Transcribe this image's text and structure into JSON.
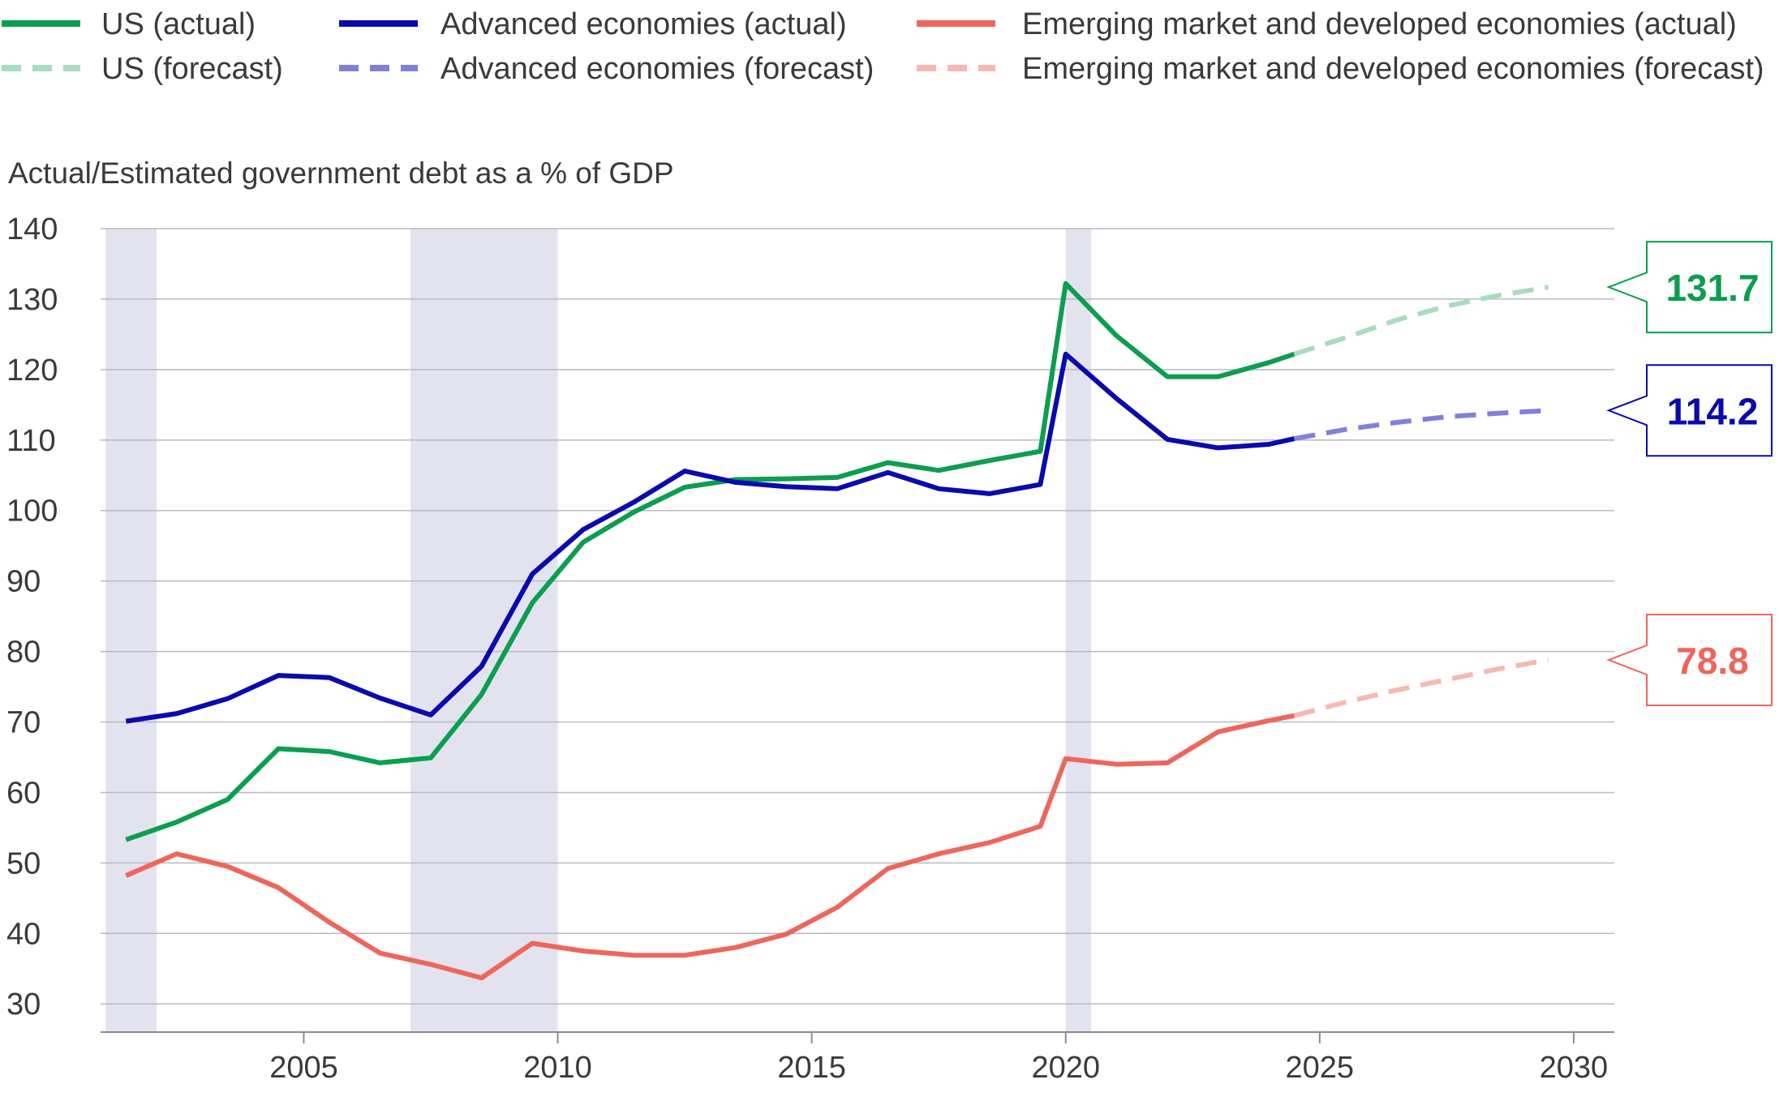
{
  "chart_data": {
    "type": "line",
    "title": "",
    "ylabel": "Actual/Estimated government debt as a % of GDP",
    "xlabel": "",
    "xlim": [
      2001,
      2030.8
    ],
    "ylim": [
      26,
      140
    ],
    "x_ticks": [
      2005,
      2010,
      2015,
      2020,
      2025,
      2030
    ],
    "y_ticks": [
      30,
      40,
      50,
      60,
      70,
      80,
      90,
      100,
      110,
      120,
      130,
      140
    ],
    "grid": "horizontal",
    "legend_position": "top",
    "recession_shading": [
      {
        "start": 2001.1,
        "end": 2002.1
      },
      {
        "start": 2007.1,
        "end": 2010.0
      },
      {
        "start": 2020.0,
        "end": 2020.5
      }
    ],
    "legend": [
      {
        "label": "US (actual)",
        "color": "#0b9e4f",
        "dashed": false
      },
      {
        "label": "Advanced economies (actual)",
        "color": "#0a0aad",
        "dashed": false
      },
      {
        "label": "Emerging market and developed economies (actual)",
        "color": "#ee665a",
        "dashed": false
      },
      {
        "label": "US (forecast)",
        "color": "#a8dcbf",
        "dashed": true
      },
      {
        "label": "Advanced economies (forecast)",
        "color": "#8080dc",
        "dashed": true
      },
      {
        "label": "Emerging market and developed economies (forecast)",
        "color": "#f8b8b2",
        "dashed": true
      }
    ],
    "series": [
      {
        "name": "US (actual)",
        "color": "#0b9e4f",
        "style": "solid",
        "x": [
          2001.5,
          2002.5,
          2003.5,
          2004.5,
          2005.5,
          2006.5,
          2007.5,
          2008.5,
          2009.5,
          2010.5,
          2011.5,
          2012.5,
          2013.5,
          2014.5,
          2015.5,
          2016.5,
          2017.5,
          2018.5,
          2019.5,
          2020.0,
          2021.0,
          2022.0,
          2023.0,
          2024.0,
          2024.5
        ],
        "y": [
          53.3,
          55.8,
          59,
          66.2,
          65.8,
          64.2,
          64.9,
          73.9,
          86.9,
          95.5,
          99.8,
          103.3,
          104.4,
          104.5,
          104.7,
          106.8,
          105.7,
          107.1,
          108.4,
          132.2,
          124.8,
          119.0,
          119.0,
          121.0,
          122.2
        ]
      },
      {
        "name": "US (forecast)",
        "color": "#a8dcbf",
        "style": "dashed",
        "x": [
          2024.5,
          2025.5,
          2026.5,
          2027.5,
          2028.5,
          2029.5
        ],
        "y": [
          122.2,
          124.5,
          127.0,
          129.0,
          130.5,
          131.7
        ]
      },
      {
        "name": "Advanced economies (actual)",
        "color": "#0a0aad",
        "style": "solid",
        "x": [
          2001.5,
          2002.5,
          2003.5,
          2004.5,
          2005.5,
          2006.5,
          2007.5,
          2008.5,
          2009.5,
          2010.5,
          2011.5,
          2012.5,
          2013.5,
          2014.5,
          2015.5,
          2016.5,
          2017.5,
          2018.5,
          2019.5,
          2020.0,
          2021.0,
          2022.0,
          2023.0,
          2024.0,
          2024.5
        ],
        "y": [
          70.1,
          71.2,
          73.3,
          76.6,
          76.3,
          73.4,
          71.0,
          77.9,
          91.0,
          97.3,
          101.2,
          105.6,
          104.0,
          103.4,
          103.1,
          105.4,
          103.1,
          102.4,
          103.7,
          122.2,
          115.9,
          110.1,
          108.9,
          109.4,
          110.2
        ]
      },
      {
        "name": "Advanced economies (forecast)",
        "color": "#8080dc",
        "style": "dashed",
        "x": [
          2024.5,
          2025.5,
          2026.5,
          2027.5,
          2028.5,
          2029.5
        ],
        "y": [
          110.2,
          111.5,
          112.5,
          113.3,
          113.8,
          114.2
        ]
      },
      {
        "name": "Emerging market and developed economies (actual)",
        "color": "#ee665a",
        "style": "solid",
        "x": [
          2001.5,
          2002.5,
          2003.5,
          2004.5,
          2005.5,
          2006.5,
          2007.5,
          2008.5,
          2009.5,
          2010.5,
          2011.5,
          2012.5,
          2013.5,
          2014.5,
          2015.5,
          2016.5,
          2017.5,
          2018.5,
          2019.5,
          2020.0,
          2021.0,
          2022.0,
          2023.0,
          2024.0,
          2024.5
        ],
        "y": [
          48.2,
          51.3,
          49.5,
          46.5,
          41.6,
          37.2,
          35.6,
          33.7,
          38.6,
          37.5,
          36.9,
          36.9,
          38.0,
          39.9,
          43.7,
          49.2,
          51.3,
          52.9,
          55.2,
          64.8,
          64.0,
          64.2,
          68.6,
          70.2,
          70.9
        ]
      },
      {
        "name": "Emerging market and developed economies (forecast)",
        "color": "#f8b8b2",
        "style": "dashed",
        "x": [
          2024.5,
          2025.5,
          2026.5,
          2027.5,
          2028.5,
          2029.5
        ],
        "y": [
          70.9,
          72.8,
          74.5,
          76.0,
          77.5,
          78.8
        ]
      }
    ],
    "annotations": [
      {
        "label": "131.7",
        "value": 131.7,
        "color": "#0b9e4f"
      },
      {
        "label": "114.2",
        "value": 114.2,
        "color": "#0a0aad"
      },
      {
        "label": "78.8",
        "value": 78.8,
        "color": "#ee665a"
      }
    ]
  }
}
